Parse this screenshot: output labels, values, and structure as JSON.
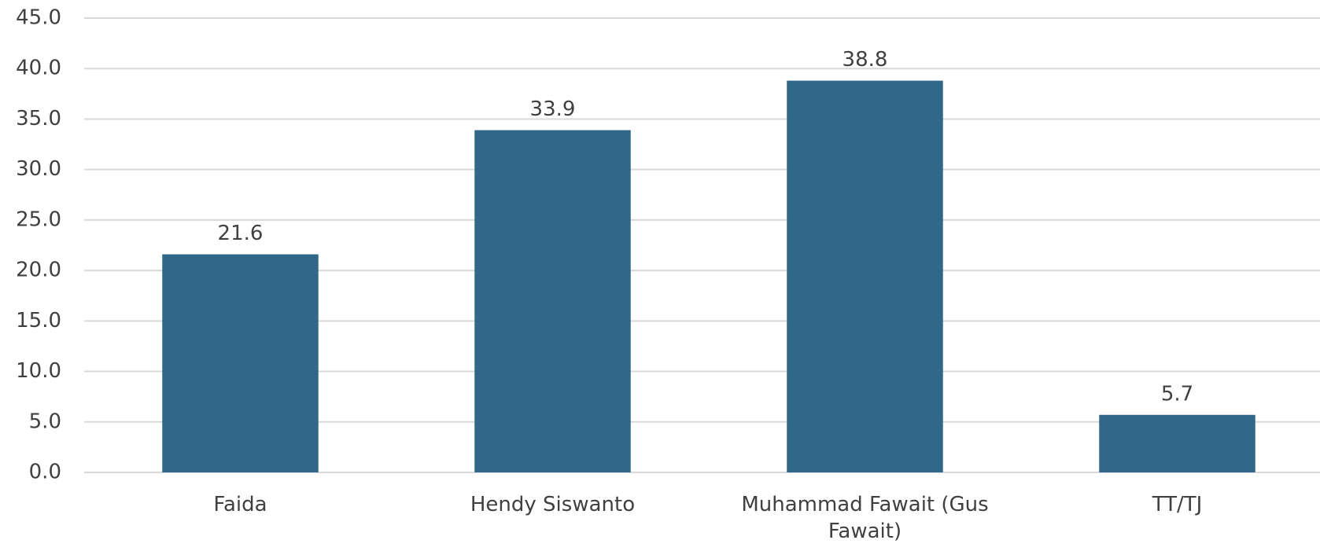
{
  "chart_data": {
    "type": "bar",
    "categories": [
      "Faida",
      "Hendy Siswanto",
      "Muhammad Fawait (Gus Fawait)",
      "TT/TJ"
    ],
    "values": [
      21.6,
      33.9,
      38.8,
      5.7
    ],
    "color": "#31688a",
    "ylim": [
      0,
      45
    ],
    "yticks": [
      {
        "value": 0,
        "label": "0.0"
      },
      {
        "value": 5,
        "label": "5.0"
      },
      {
        "value": 10,
        "label": "10.0"
      },
      {
        "value": 15,
        "label": "15.0"
      },
      {
        "value": 20,
        "label": "20.0"
      },
      {
        "value": 25,
        "label": "25.0"
      },
      {
        "value": 30,
        "label": "30.0"
      },
      {
        "value": 35,
        "label": "35.0"
      },
      {
        "value": 40,
        "label": "40.0"
      },
      {
        "value": 45,
        "label": "45.0"
      }
    ],
    "grid": true
  }
}
